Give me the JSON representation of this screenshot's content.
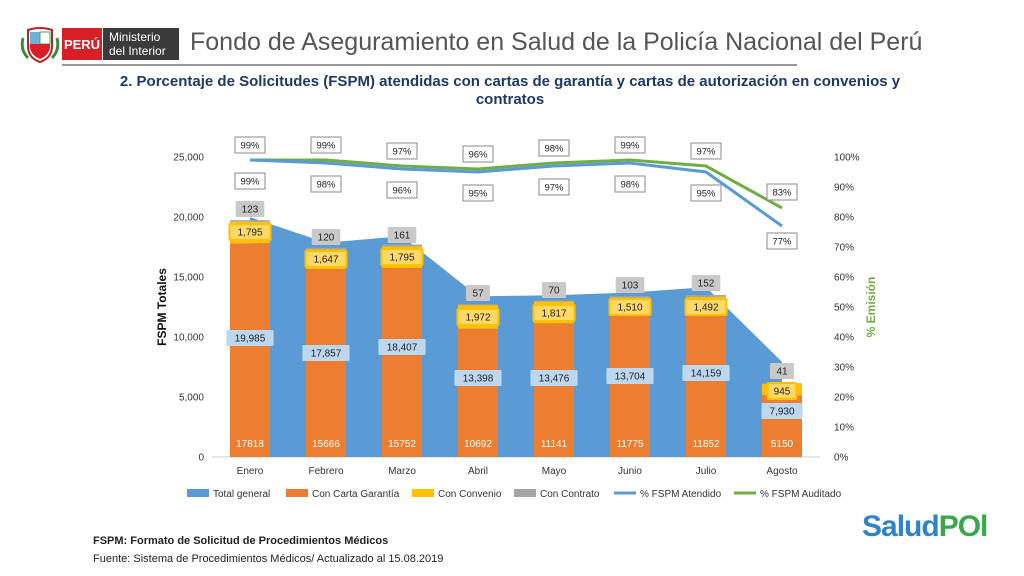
{
  "header": {
    "country_label": "PERÚ",
    "ministry_line1": "Ministerio",
    "ministry_line2": "del Interior",
    "title": "Fondo de Aseguramiento en Salud de la Policía Nacional del Perú"
  },
  "chart_data": {
    "type": "bar",
    "title": "2. Porcentaje de Solicitudes (FSPM) atendidas con cartas de garantía y cartas de autorización en convenios y contratos",
    "ylabel": "FSPM Totales",
    "y2label": "% Emisión",
    "ylim": [
      0,
      25000
    ],
    "y2lim": [
      0,
      100
    ],
    "yticks": [
      "0",
      "5,000",
      "10,000",
      "15,000",
      "20,000",
      "25,000"
    ],
    "y2ticks": [
      "0%",
      "10%",
      "20%",
      "30%",
      "40%",
      "50%",
      "60%",
      "70%",
      "80%",
      "90%",
      "100%"
    ],
    "categories": [
      "Enero",
      "Febrero",
      "Marzo",
      "Abril",
      "Mayo",
      "Junio",
      "Julio",
      "Agosto"
    ],
    "series": [
      {
        "name": "Total general",
        "kind": "area",
        "color": "#5b9bd5",
        "values": [
          19985,
          17857,
          18407,
          13398,
          13476,
          13704,
          14159,
          7930
        ],
        "labels": [
          "19,985",
          "17,857",
          "18,407",
          "13,398",
          "13,476",
          "13,704",
          "14,159",
          "7,930"
        ]
      },
      {
        "name": "Con Carta Garantía",
        "kind": "bar",
        "color": "#ed7d31",
        "values": [
          17818,
          15666,
          15752,
          10692,
          11141,
          11775,
          11852,
          5150
        ],
        "labels": [
          "17818",
          "15666",
          "15752",
          "10692",
          "11141",
          "11775",
          "11852",
          "5150"
        ]
      },
      {
        "name": "Con Convenio",
        "kind": "bar",
        "color": "#ffc000",
        "values": [
          1795,
          1647,
          1795,
          1972,
          1817,
          1510,
          1492,
          945
        ],
        "labels": [
          "1,795",
          "1,647",
          "1,795",
          "1,972",
          "1,817",
          "1,510",
          "1,492",
          "945"
        ]
      },
      {
        "name": "Con Contrato",
        "kind": "bar",
        "color": "#a5a5a5",
        "values": [
          123,
          120,
          161,
          57,
          70,
          103,
          152,
          41
        ],
        "labels": [
          "123",
          "120",
          "161",
          "57",
          "70",
          "103",
          "152",
          "41"
        ]
      },
      {
        "name": "% FSPM Atendido",
        "kind": "line",
        "color": "#5b9bd5",
        "axis": "right",
        "values": [
          99,
          98,
          96,
          95,
          97,
          98,
          95,
          77
        ],
        "labels": [
          "99%",
          "98%",
          "96%",
          "95%",
          "97%",
          "98%",
          "95%",
          "77%"
        ]
      },
      {
        "name": "% FSPM Auditado",
        "kind": "line",
        "color": "#70ad47",
        "axis": "right",
        "values": [
          99,
          99,
          97,
          96,
          98,
          99,
          97,
          83
        ],
        "labels": [
          "99%",
          "99%",
          "97%",
          "96%",
          "98%",
          "99%",
          "97%",
          "83%"
        ]
      }
    ],
    "legend_position": "bottom"
  },
  "footer": {
    "note": "FSPM: Formato de Solicitud de Procedimientos Médicos",
    "source": "Fuente: Sistema de Procedimientos Médicos/ Actualizado al 15.08.2019"
  },
  "logo": {
    "part1": "Salud",
    "part2": "POl"
  }
}
